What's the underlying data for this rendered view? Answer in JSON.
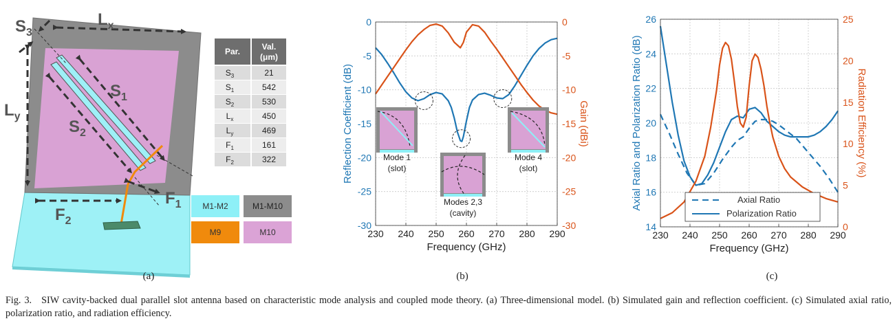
{
  "panel_a": {
    "labels": {
      "lx": "L",
      "lx_sub": "x",
      "ly": "L",
      "ly_sub": "y",
      "s3": "S",
      "s3_sub": "3",
      "s1": "S",
      "s1_sub": "1",
      "s2": "S",
      "s2_sub": "2",
      "f1": "F",
      "f1_sub": "1",
      "f2": "F",
      "f2_sub": "2"
    },
    "table": {
      "header": [
        "Par.",
        "Val.",
        "(μm)"
      ],
      "rows": [
        {
          "p": "S",
          "sub": "3",
          "v": "21"
        },
        {
          "p": "S",
          "sub": "1",
          "v": "542"
        },
        {
          "p": "S",
          "sub": "2",
          "v": "530"
        },
        {
          "p": "L",
          "sub": "x",
          "v": "450"
        },
        {
          "p": "L",
          "sub": "y",
          "v": "469"
        },
        {
          "p": "F",
          "sub": "1",
          "v": "161"
        },
        {
          "p": "F",
          "sub": "2",
          "v": "322"
        }
      ]
    },
    "legend": [
      {
        "label": "M1-M2",
        "color": "#8ef0f7"
      },
      {
        "label": "M1-M10",
        "color": "#8c8c8c"
      },
      {
        "label": "M9",
        "color": "#f08a0c"
      },
      {
        "label": "M10",
        "color": "#dba3d6"
      }
    ],
    "colors": {
      "substrate": "#9ef1f6",
      "cavity": "#8c8c8c",
      "patch": "#d9a2d4",
      "slot": "#9ef0f7",
      "feed": "#f08a0c"
    }
  },
  "chart_data": [
    {
      "type": "line",
      "title": "",
      "xlabel": "Frequency (GHz)",
      "ylabel": "Reflection Coefficient (dB)",
      "y2label": "Gain (dBi)",
      "xlim": [
        230,
        290
      ],
      "ylim": [
        -30,
        0
      ],
      "y2lim": [
        -30,
        0
      ],
      "xticks": [
        "230",
        "240",
        "250",
        "260",
        "270",
        "280",
        "290"
      ],
      "yticks": [
        "0",
        "-5",
        "-10",
        "-15",
        "-20",
        "-25",
        "-30"
      ],
      "y2ticks": [
        "0",
        "-5",
        "-10",
        "-15",
        "-20",
        "-25",
        "-30"
      ],
      "grid": true,
      "series": [
        {
          "name": "Reflection Coefficient",
          "axis": "left",
          "color": "#1f77b4",
          "x": [
            230,
            232,
            234,
            236,
            238,
            240,
            242,
            244,
            246,
            248,
            250,
            252,
            254,
            255,
            256,
            257,
            258,
            258.5,
            259,
            260,
            261,
            262,
            264,
            266,
            268,
            270,
            272,
            274,
            276,
            278,
            280,
            282,
            284,
            286,
            288,
            290
          ],
          "y": [
            -3.8,
            -4.8,
            -6.1,
            -7.5,
            -9.0,
            -10.3,
            -11.2,
            -11.6,
            -11.3,
            -10.7,
            -10.4,
            -10.6,
            -11.6,
            -12.6,
            -14.2,
            -16.2,
            -17.5,
            -17.6,
            -16.9,
            -14.6,
            -12.6,
            -11.5,
            -10.7,
            -10.5,
            -10.8,
            -11.2,
            -11.3,
            -10.7,
            -9.4,
            -7.9,
            -6.4,
            -5.0,
            -3.9,
            -3.1,
            -2.6,
            -2.4
          ]
        },
        {
          "name": "Gain",
          "axis": "right",
          "color": "#d95319",
          "x": [
            230,
            232,
            234,
            236,
            238,
            240,
            242,
            244,
            246,
            248,
            250,
            252,
            254,
            256,
            258,
            259,
            260,
            262,
            264,
            266,
            268,
            270,
            272,
            274,
            276,
            278,
            280,
            282,
            284,
            286,
            288,
            290
          ],
          "y": [
            -10.6,
            -9.3,
            -8.0,
            -6.7,
            -5.4,
            -4.1,
            -2.9,
            -1.9,
            -1.1,
            -0.5,
            -0.3,
            -0.6,
            -1.6,
            -3.0,
            -3.8,
            -3.0,
            -1.5,
            -0.4,
            -0.6,
            -1.5,
            -2.8,
            -4.0,
            -5.3,
            -6.6,
            -7.9,
            -9.2,
            -10.4,
            -11.5,
            -12.4,
            -13.0,
            -13.4,
            -13.6
          ]
        }
      ],
      "annotations": {
        "mode1": "Mode 1",
        "mode1b": "(slot)",
        "mode23": "Modes 2,3",
        "mode23b": "(cavity)",
        "mode4": "Mode 4",
        "mode4b": "(slot)"
      }
    },
    {
      "type": "line",
      "title": "",
      "xlabel": "Frequency (GHz)",
      "ylabel": "Axial Ratio and Polarization Ratio (dB)",
      "y2label": "Radiation Efficiency (%)",
      "xlim": [
        230,
        290
      ],
      "ylim": [
        14,
        26
      ],
      "y2lim": [
        0,
        25
      ],
      "xticks": [
        "230",
        "240",
        "250",
        "260",
        "270",
        "280",
        "290"
      ],
      "yticks": [
        "26",
        "24",
        "22",
        "20",
        "18",
        "16",
        "14"
      ],
      "y2ticks": [
        "25",
        "20",
        "15",
        "10",
        "5",
        "0"
      ],
      "grid": true,
      "series": [
        {
          "name": "Axial Ratio",
          "axis": "left",
          "style": "dashed",
          "color": "#1f77b4",
          "x": [
            230,
            233,
            236,
            239,
            242,
            245,
            248,
            251,
            254,
            256,
            258,
            260,
            262,
            264,
            266,
            268,
            270,
            273,
            276,
            280,
            284,
            287,
            290
          ],
          "y": [
            20.5,
            19.4,
            18.2,
            17.1,
            16.4,
            16.5,
            17.1,
            17.9,
            18.6,
            19.0,
            19.2,
            19.7,
            20.1,
            20.2,
            20.2,
            20.1,
            19.9,
            19.5,
            19.1,
            18.3,
            17.5,
            16.8,
            16.0
          ]
        },
        {
          "name": "Polarization Ratio",
          "axis": "left",
          "style": "solid",
          "color": "#1f77b4",
          "x": [
            230,
            232,
            234,
            236,
            238,
            240,
            242,
            244,
            246,
            248,
            250,
            252,
            254,
            256,
            258,
            260,
            262,
            264,
            266,
            268,
            270,
            272,
            274,
            276,
            278,
            280,
            282,
            284,
            286,
            288,
            290
          ],
          "y": [
            25.6,
            23.4,
            21.2,
            19.3,
            17.8,
            16.9,
            16.4,
            16.5,
            17.0,
            17.7,
            18.6,
            19.5,
            20.2,
            20.4,
            20.3,
            20.8,
            20.9,
            20.6,
            20.1,
            19.8,
            19.5,
            19.3,
            19.2,
            19.2,
            19.2,
            19.2,
            19.3,
            19.5,
            19.8,
            20.2,
            20.7
          ]
        },
        {
          "name": "Radiation Efficiency",
          "axis": "right",
          "style": "solid",
          "color": "#d95319",
          "x": [
            230,
            234,
            238,
            242,
            245,
            247,
            249,
            250,
            251,
            252,
            253,
            254,
            255,
            256,
            257,
            258,
            259,
            260,
            261,
            262,
            263,
            264,
            265,
            266,
            267,
            268,
            270,
            272,
            274,
            278,
            282,
            286,
            290
          ],
          "y": [
            1.0,
            1.7,
            3.0,
            5.5,
            8.5,
            12.0,
            16.5,
            19.5,
            21.5,
            22.2,
            21.8,
            20.2,
            17.5,
            14.5,
            12.5,
            12.0,
            13.2,
            17.0,
            20.0,
            20.8,
            20.4,
            19.0,
            17.0,
            14.5,
            12.5,
            10.8,
            8.5,
            7.0,
            6.0,
            4.8,
            4.0,
            3.4,
            3.0
          ]
        }
      ],
      "legend": [
        "Axial Ratio",
        "Polarization Ratio"
      ]
    }
  ],
  "captions": {
    "a": "(a)",
    "b": "(b)",
    "c": "(c)"
  },
  "caption": {
    "label": "Fig. 3.",
    "text": "SIW cavity-backed dual parallel slot antenna based on characteristic mode analysis and coupled mode theory. (a) Three-dimensional model. (b) Simulated gain and reflection coefficient. (c) Simulated axial ratio, polarization ratio, and radiation efficiency."
  }
}
